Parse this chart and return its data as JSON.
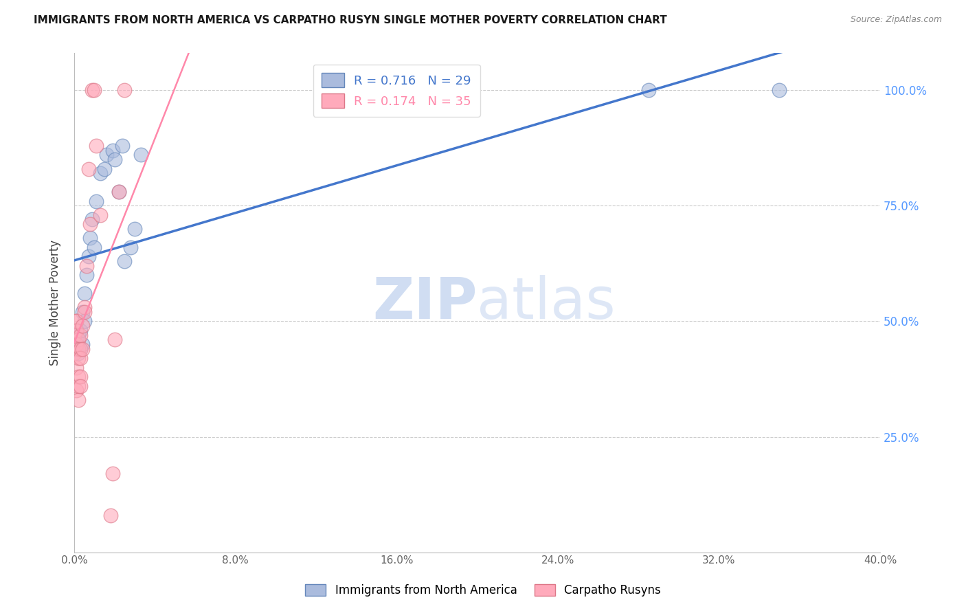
{
  "title": "IMMIGRANTS FROM NORTH AMERICA VS CARPATHO RUSYN SINGLE MOTHER POVERTY CORRELATION CHART",
  "source": "Source: ZipAtlas.com",
  "ylabel": "Single Mother Poverty",
  "legend_label1": "Immigrants from North America",
  "legend_label2": "Carpatho Rusyns",
  "R_blue": 0.716,
  "N_blue": 29,
  "R_pink": 0.174,
  "N_pink": 35,
  "blue_fill": "#AABBDD",
  "blue_edge": "#6688BB",
  "pink_fill": "#FFAABB",
  "pink_edge": "#DD7788",
  "line_blue_color": "#4477CC",
  "line_pink_color": "#FF88AA",
  "watermark_color": "#DDEEFF",
  "ytick_color": "#5599FF",
  "xtick_color": "#666666",
  "blue_x": [
    0.001,
    0.001,
    0.002,
    0.002,
    0.003,
    0.003,
    0.004,
    0.004,
    0.005,
    0.005,
    0.006,
    0.007,
    0.008,
    0.009,
    0.01,
    0.011,
    0.013,
    0.015,
    0.016,
    0.019,
    0.02,
    0.022,
    0.024,
    0.025,
    0.028,
    0.03,
    0.033,
    0.285,
    0.35
  ],
  "blue_y": [
    0.44,
    0.46,
    0.43,
    0.47,
    0.44,
    0.48,
    0.45,
    0.52,
    0.5,
    0.56,
    0.6,
    0.64,
    0.68,
    0.72,
    0.66,
    0.76,
    0.82,
    0.83,
    0.86,
    0.87,
    0.85,
    0.78,
    0.88,
    0.63,
    0.66,
    0.7,
    0.86,
    1.0,
    1.0
  ],
  "pink_x": [
    0.0,
    0.0,
    0.001,
    0.001,
    0.001,
    0.001,
    0.001,
    0.001,
    0.002,
    0.002,
    0.002,
    0.002,
    0.002,
    0.002,
    0.003,
    0.003,
    0.003,
    0.003,
    0.003,
    0.004,
    0.004,
    0.005,
    0.005,
    0.006,
    0.007,
    0.008,
    0.009,
    0.01,
    0.011,
    0.013,
    0.018,
    0.019,
    0.02,
    0.022,
    0.025
  ],
  "pink_y": [
    0.47,
    0.43,
    0.5,
    0.5,
    0.48,
    0.45,
    0.4,
    0.35,
    0.46,
    0.44,
    0.42,
    0.38,
    0.36,
    0.33,
    0.47,
    0.44,
    0.42,
    0.38,
    0.36,
    0.49,
    0.44,
    0.53,
    0.52,
    0.62,
    0.83,
    0.71,
    1.0,
    1.0,
    0.88,
    0.73,
    0.08,
    0.17,
    0.46,
    0.78,
    1.0
  ],
  "xlim": [
    0.0,
    0.4
  ],
  "ylim": [
    0.0,
    1.08
  ],
  "ytick_values": [
    0.25,
    0.5,
    0.75,
    1.0
  ],
  "xtick_values": [
    0.0,
    0.08,
    0.16,
    0.24,
    0.32,
    0.4
  ]
}
